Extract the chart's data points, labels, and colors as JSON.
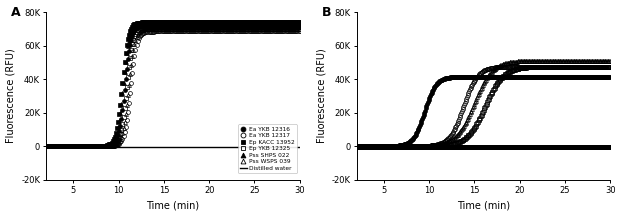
{
  "panel_A": {
    "label": "A",
    "curves": [
      {
        "name": "Ea YKB 12316",
        "marker": "o",
        "fillstyle": "full",
        "color": "black",
        "plateau": 72000,
        "t50": 10.7,
        "k": 3.0
      },
      {
        "name": "Ea YKB 12317",
        "marker": "o",
        "fillstyle": "none",
        "color": "black",
        "plateau": 68500,
        "t50": 11.3,
        "k": 3.0
      },
      {
        "name": "Ep KACC 13952",
        "marker": "s",
        "fillstyle": "full",
        "color": "black",
        "plateau": 74000,
        "t50": 10.4,
        "k": 3.0
      },
      {
        "name": "Ep YKB 12325",
        "marker": "s",
        "fillstyle": "none",
        "color": "black",
        "plateau": 71000,
        "t50": 10.9,
        "k": 3.0
      },
      {
        "name": "Pss SHPS 022",
        "marker": "^",
        "fillstyle": "full",
        "color": "black",
        "plateau": 72500,
        "t50": 10.5,
        "k": 3.0
      },
      {
        "name": "Pss WSPS 039",
        "marker": "^",
        "fillstyle": "none",
        "color": "black",
        "plateau": 70000,
        "t50": 11.1,
        "k": 3.0
      },
      {
        "name": "Distilled water",
        "marker": "none",
        "fillstyle": "full",
        "color": "black",
        "plateau": -500,
        "t50": 999,
        "k": 3.0
      }
    ],
    "xlabel": "Time (min)",
    "ylabel": "Fluorescence (RFU)",
    "xlim": [
      2,
      30
    ],
    "ylim": [
      -20000,
      80000
    ],
    "xticks": [
      5,
      10,
      15,
      20,
      25,
      30
    ],
    "yticks": [
      -20000,
      0,
      20000,
      40000,
      60000,
      80000
    ],
    "ytick_labels": [
      "-20K",
      "0",
      "20K",
      "40K",
      "60K",
      "80K"
    ]
  },
  "panel_B": {
    "label": "B",
    "curves": [
      {
        "name": "Ea YKB 12316",
        "marker": "o",
        "fillstyle": "full",
        "color": "black",
        "plateau": 41500,
        "t50": 9.5,
        "k": 1.6
      },
      {
        "name": "Ea YKB 12317",
        "marker": "o",
        "fillstyle": "none",
        "color": "black",
        "plateau": 47500,
        "t50": 13.8,
        "k": 1.3
      },
      {
        "name": "Ep KACC 13952",
        "marker": "s",
        "fillstyle": "full",
        "color": "black",
        "plateau": -500,
        "t50": 999,
        "k": 1.5
      },
      {
        "name": "Ep YKB 12325",
        "marker": "s",
        "fillstyle": "none",
        "color": "black",
        "plateau": 47500,
        "t50": 16.2,
        "k": 1.0
      },
      {
        "name": "Pss SHPS 022",
        "marker": "^",
        "fillstyle": "full",
        "color": "black",
        "plateau": -500,
        "t50": 999,
        "k": 1.5
      },
      {
        "name": "Pss WSPS 039",
        "marker": "^",
        "fillstyle": "none",
        "color": "black",
        "plateau": 51000,
        "t50": 15.0,
        "k": 1.0
      },
      {
        "name": "Distilled water",
        "marker": "none",
        "fillstyle": "full",
        "color": "black",
        "plateau": -500,
        "t50": 999,
        "k": 1.5
      }
    ],
    "xlabel": "Time (min)",
    "ylabel": "Fluorescence (RFU)",
    "xlim": [
      2,
      30
    ],
    "ylim": [
      -20000,
      80000
    ],
    "xticks": [
      5,
      10,
      15,
      20,
      25,
      30
    ],
    "yticks": [
      -20000,
      0,
      20000,
      40000,
      60000,
      80000
    ],
    "ytick_labels": [
      "-20K",
      "0",
      "20K",
      "40K",
      "60K",
      "80K"
    ]
  },
  "legend_entries": [
    {
      "name": "Ea YKB 12316",
      "marker": "o",
      "fillstyle": "full",
      "color": "black"
    },
    {
      "name": "Ea YKB 12317",
      "marker": "o",
      "fillstyle": "none",
      "color": "black"
    },
    {
      "name": "Ep KACC 13952",
      "marker": "s",
      "fillstyle": "full",
      "color": "black"
    },
    {
      "name": "Ep YKB 12325",
      "marker": "s",
      "fillstyle": "none",
      "color": "black"
    },
    {
      "name": "Pss SHPS 022",
      "marker": "^",
      "fillstyle": "full",
      "color": "black"
    },
    {
      "name": "Pss WSPS 039",
      "marker": "^",
      "fillstyle": "none",
      "color": "black"
    },
    {
      "name": "Distilled water",
      "marker": "none",
      "fillstyle": "full",
      "color": "black"
    }
  ],
  "background_color": "#ffffff",
  "markersize": 2.8,
  "markevery_sparse": 3,
  "markevery_dense": 2
}
